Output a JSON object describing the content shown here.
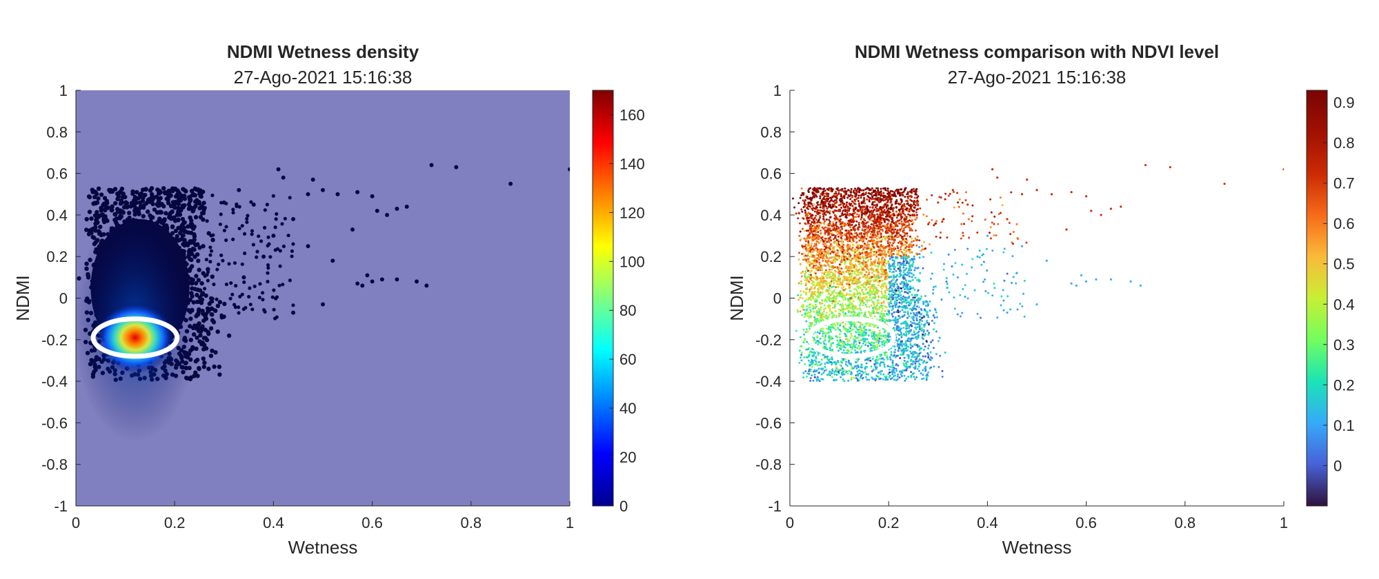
{
  "chart_data": [
    {
      "type": "scatter",
      "subtype": "density",
      "title": "NDMI Wetness density",
      "subtitle": "27-Ago-2021 15:16:38",
      "xlabel": "Wetness",
      "ylabel": "NDMI",
      "xlim": [
        0,
        1
      ],
      "ylim": [
        -1,
        1
      ],
      "xticks": [
        "0",
        "0.2",
        "0.4",
        "0.6",
        "0.8",
        "1"
      ],
      "yticks": [
        "-1",
        "-0.8",
        "-0.6",
        "-0.4",
        "-0.2",
        "0",
        "0.2",
        "0.4",
        "0.6",
        "0.8",
        "1"
      ],
      "background_color": "#8080c0",
      "colormap": "jet",
      "colorbar": {
        "min": 0,
        "max": 170,
        "ticks": [
          "0",
          "20",
          "40",
          "60",
          "80",
          "100",
          "120",
          "140",
          "160"
        ]
      },
      "cluster": {
        "x_center": 0.12,
        "y_center": -0.19,
        "x_range": [
          0.03,
          0.28
        ],
        "y_range": [
          -0.4,
          0.53
        ],
        "peak_density": 165
      },
      "outliers": [
        {
          "x": 0.3,
          "y": 0.46
        },
        {
          "x": 0.33,
          "y": 0.52
        },
        {
          "x": 0.36,
          "y": 0.45
        },
        {
          "x": 0.41,
          "y": 0.62
        },
        {
          "x": 0.42,
          "y": 0.58
        },
        {
          "x": 0.44,
          "y": 0.38
        },
        {
          "x": 0.47,
          "y": 0.5
        },
        {
          "x": 0.48,
          "y": 0.57
        },
        {
          "x": 0.5,
          "y": 0.52
        },
        {
          "x": 0.53,
          "y": 0.5
        },
        {
          "x": 0.57,
          "y": 0.51
        },
        {
          "x": 0.6,
          "y": 0.49
        },
        {
          "x": 0.61,
          "y": 0.42
        },
        {
          "x": 0.63,
          "y": 0.4
        },
        {
          "x": 0.65,
          "y": 0.43
        },
        {
          "x": 0.67,
          "y": 0.44
        },
        {
          "x": 0.72,
          "y": 0.64
        },
        {
          "x": 0.77,
          "y": 0.63
        },
        {
          "x": 0.88,
          "y": 0.55
        },
        {
          "x": 1.0,
          "y": 0.62
        },
        {
          "x": 0.56,
          "y": 0.33
        },
        {
          "x": 0.57,
          "y": 0.07
        },
        {
          "x": 0.58,
          "y": 0.06
        },
        {
          "x": 0.59,
          "y": 0.11
        },
        {
          "x": 0.6,
          "y": 0.08
        },
        {
          "x": 0.62,
          "y": 0.09
        },
        {
          "x": 0.65,
          "y": 0.09
        },
        {
          "x": 0.69,
          "y": 0.08
        },
        {
          "x": 0.71,
          "y": 0.06
        },
        {
          "x": 0.5,
          "y": -0.03
        },
        {
          "x": 0.44,
          "y": -0.07
        },
        {
          "x": 0.52,
          "y": 0.18
        },
        {
          "x": 0.47,
          "y": 0.25
        },
        {
          "x": 0.38,
          "y": 0.2
        },
        {
          "x": 0.34,
          "y": 0.1
        },
        {
          "x": 0.4,
          "y": 0.3
        }
      ],
      "annotation": {
        "shape": "ellipse",
        "x_center": 0.12,
        "y_center": -0.19,
        "x_radius": 0.085,
        "y_radius": 0.145,
        "color": "#ffffff"
      }
    },
    {
      "type": "scatter",
      "subtype": "colored-by-value",
      "title": "NDMI Wetness comparison with NDVI level",
      "subtitle": "27-Ago-2021 15:16:38",
      "xlabel": "Wetness",
      "ylabel": "NDMI",
      "xlim": [
        0,
        1
      ],
      "ylim": [
        -1,
        1
      ],
      "xticks": [
        "0",
        "0.2",
        "0.4",
        "0.6",
        "0.8",
        "1"
      ],
      "yticks": [
        "-1",
        "-0.8",
        "-0.6",
        "-0.4",
        "-0.2",
        "0",
        "0.2",
        "0.4",
        "0.6",
        "0.8",
        "1"
      ],
      "background_color": "#ffffff",
      "colormap": "turbo",
      "colorbar": {
        "min": -0.1,
        "max": 0.93,
        "ticks": [
          "0",
          "0.1",
          "0.2",
          "0.3",
          "0.4",
          "0.5",
          "0.6",
          "0.7",
          "0.8",
          "0.9"
        ]
      },
      "cluster": {
        "x_center": 0.12,
        "y_center": -0.19,
        "x_range": [
          0.03,
          0.28
        ],
        "y_range": [
          -0.4,
          0.53
        ]
      },
      "color_trend": {
        "top_ndvi": 0.9,
        "bottom_ndvi": 0.15
      },
      "annotation": {
        "shape": "ellipse",
        "x_center": 0.125,
        "y_center": -0.19,
        "x_radius": 0.085,
        "y_radius": 0.145,
        "color": "#ffffff"
      }
    }
  ]
}
